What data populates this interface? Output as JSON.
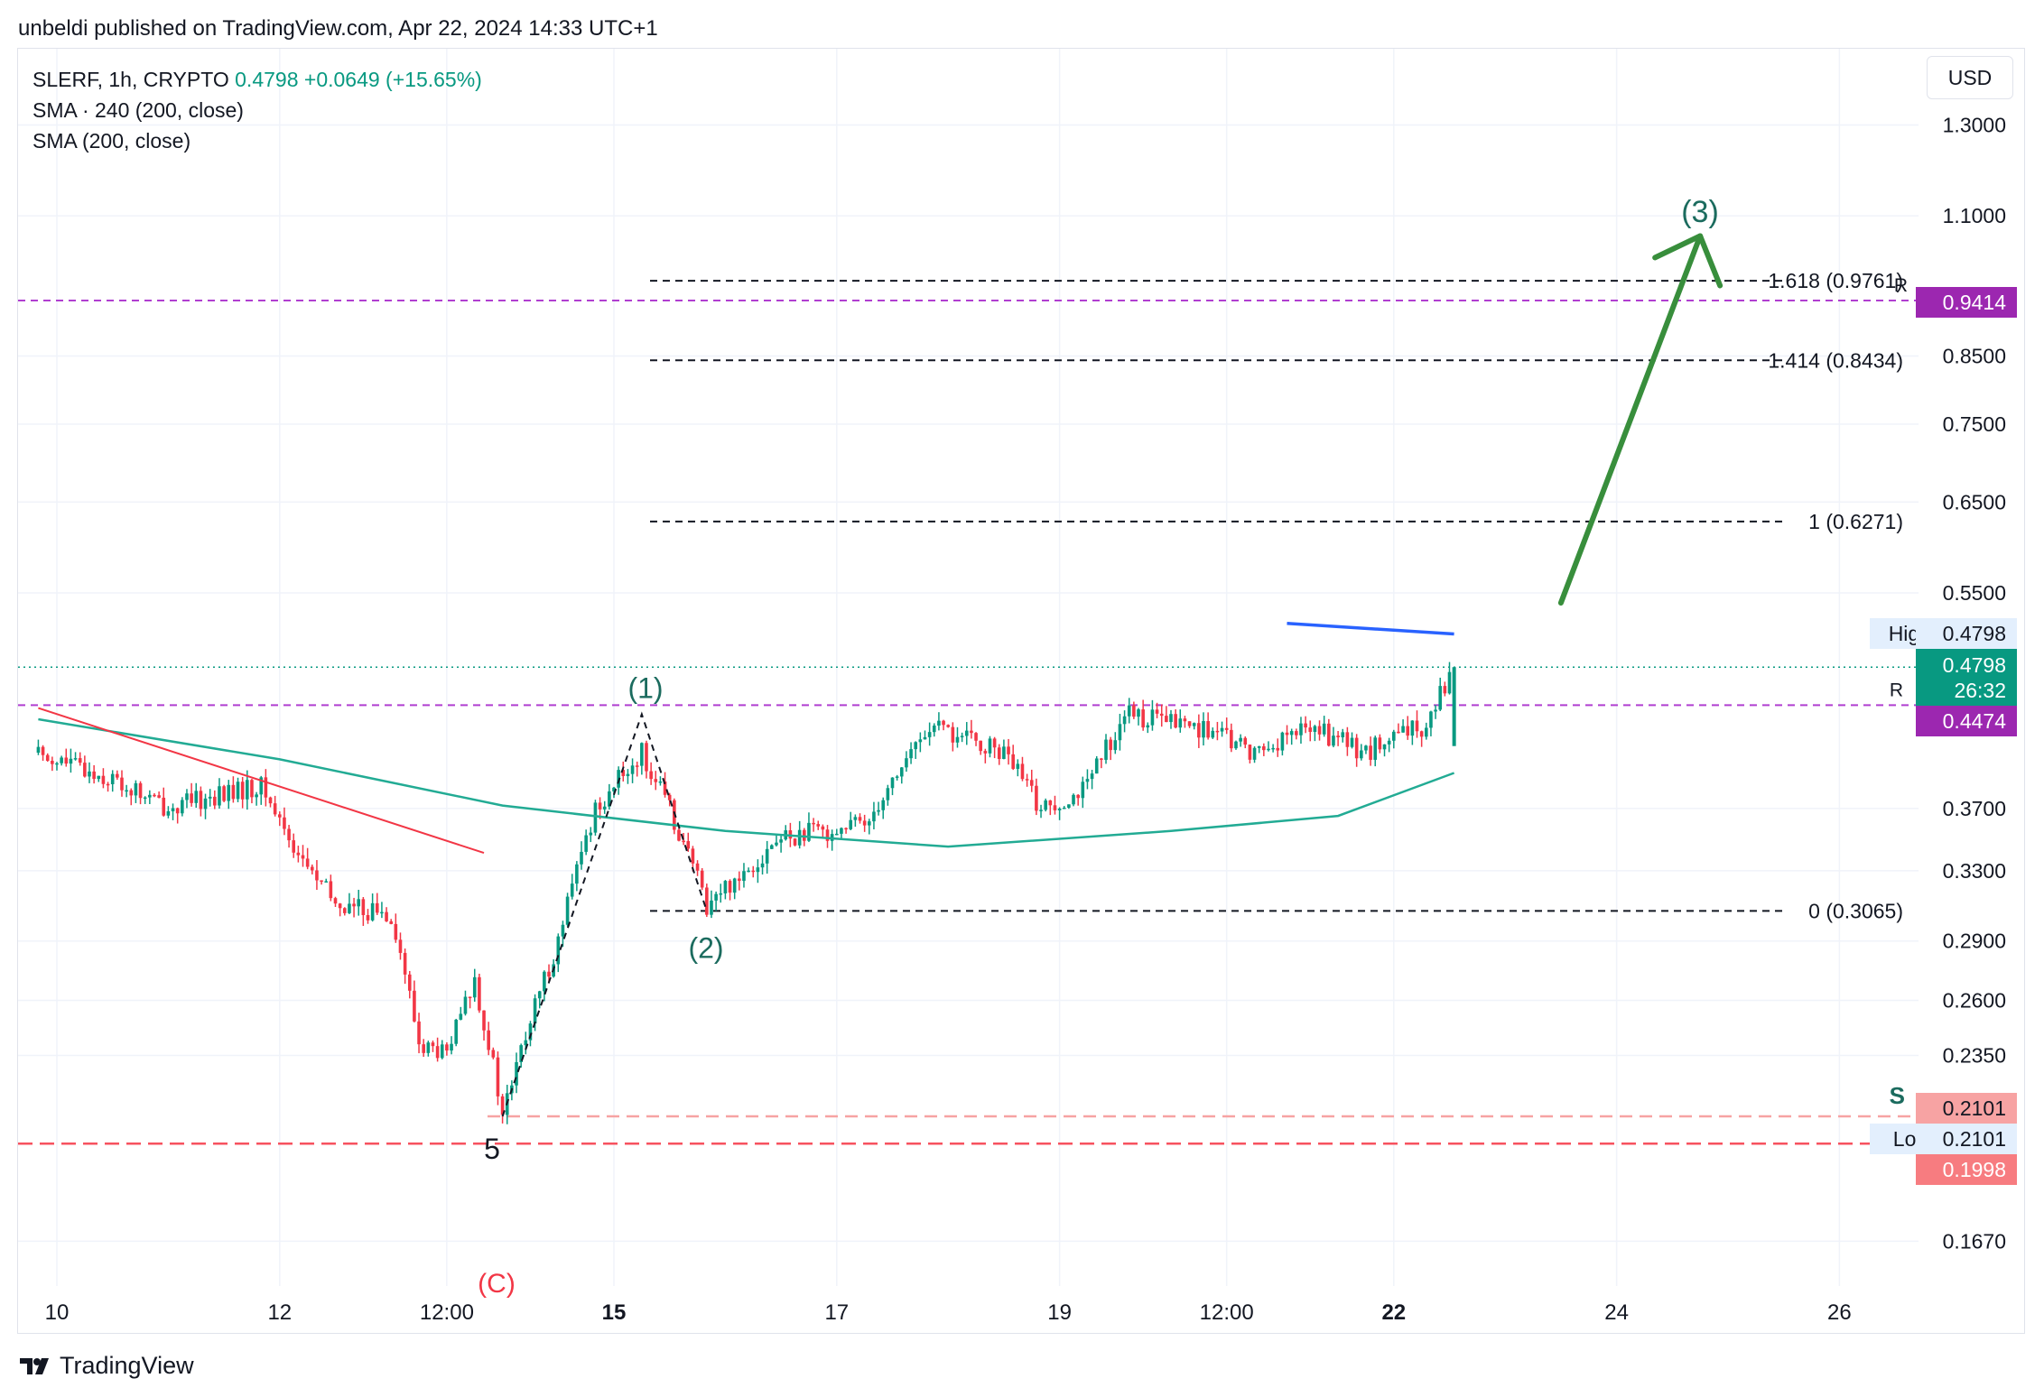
{
  "header": {
    "published_by": "unbeldi published on TradingView.com, Apr 22, 2024 14:33 UTC+1"
  },
  "legend": {
    "symbol_line": "SLERF, 1h, CRYPTO",
    "price": "0.4798",
    "change": "+0.0649 (+15.65%)",
    "sma_240": "SMA · 240 (200, close)",
    "sma_200": "SMA (200, close)"
  },
  "currency_button": "USD",
  "price_axis": {
    "ticks": [
      "1.3000",
      "1.1000",
      "0.8500",
      "0.7500",
      "0.6500",
      "0.5500",
      "0.3700",
      "0.3300",
      "0.2900",
      "0.2600",
      "0.2350",
      "0.1670"
    ]
  },
  "time_axis": {
    "ticks": [
      {
        "label": "10",
        "bold": false
      },
      {
        "label": "12",
        "bold": false
      },
      {
        "label": "12:00",
        "bold": false
      },
      {
        "label": "15",
        "bold": true
      },
      {
        "label": "17",
        "bold": false
      },
      {
        "label": "19",
        "bold": false
      },
      {
        "label": "12:00",
        "bold": false
      },
      {
        "label": "22",
        "bold": true
      },
      {
        "label": "24",
        "bold": false
      },
      {
        "label": "26",
        "bold": false
      }
    ]
  },
  "price_labels": {
    "high_tag": "High",
    "high_value": "0.4798",
    "last_price": "0.4798",
    "countdown": "26:32",
    "r_upper": "0.9414",
    "r_lower": "0.4474",
    "s_value": "0.2101",
    "low_tag": "Low",
    "low_value": "0.2101",
    "red_value": "0.1998"
  },
  "fib_levels": [
    {
      "ratio": "1.618",
      "label": "1.618 (0.9761)",
      "price": 0.9761
    },
    {
      "ratio": "1.414",
      "label": "1.414 (0.8434)",
      "price": 0.8434
    },
    {
      "ratio": "1",
      "label": "1 (0.6271)",
      "price": 0.6271
    },
    {
      "ratio": "0",
      "label": "0 (0.3065)",
      "price": 0.3065
    }
  ],
  "annotations": {
    "wave_1": "(1)",
    "wave_2": "(2)",
    "wave_3": "(3)",
    "wave_5": "5",
    "wave_c_partial": "(C)",
    "r_marker": "R",
    "r_marker_top": "R",
    "s_marker": "S"
  },
  "colors": {
    "up": "#089981",
    "down": "#f23645",
    "sma_teal": "#22ab94",
    "sma_blue": "#2962ff",
    "resistance": "#b03fd0",
    "support": "#f7525f",
    "arrow": "#388e3c",
    "wave_text": "#1b6b5e"
  },
  "chart_data": {
    "type": "candlestick",
    "title": "SLERF, 1h, CRYPTO",
    "ylabel": "USD",
    "y_scale": "log",
    "ylim": [
      0.15,
      1.45
    ],
    "x_range": [
      "Apr 9",
      "Apr 26"
    ],
    "last_close": 0.4798,
    "period_high": 0.4798,
    "period_low": 0.2101,
    "horizontal_levels": {
      "resistance": [
        0.9414,
        0.4474
      ],
      "support": [
        0.2101,
        0.1998
      ]
    },
    "series": [
      {
        "name": "SLERF price (approx. path)",
        "points": [
          [
            "Apr 9 20:00",
            0.41
          ],
          [
            "Apr 10 12:00",
            0.39
          ],
          [
            "Apr 11 00:00",
            0.37
          ],
          [
            "Apr 11 12:00",
            0.38
          ],
          [
            "Apr 11 20:00",
            0.385
          ],
          [
            "Apr 12 04:00",
            0.34
          ],
          [
            "Apr 12 12:00",
            0.31
          ],
          [
            "Apr 13 00:00",
            0.305
          ],
          [
            "Apr 13 06:00",
            0.24
          ],
          [
            "Apr 13 12:00",
            0.235
          ],
          [
            "Apr 13 18:00",
            0.27
          ],
          [
            "Apr 14 00:00",
            0.21
          ],
          [
            "Apr 14 12:00",
            0.29
          ],
          [
            "Apr 14 20:00",
            0.37
          ],
          [
            "Apr 15 06:00",
            0.41
          ],
          [
            "Apr 15 14:00",
            0.355
          ],
          [
            "Apr 15 20:00",
            0.31
          ],
          [
            "Apr 16 12:00",
            0.35
          ],
          [
            "Apr 17 06:00",
            0.36
          ],
          [
            "Apr 17 20:00",
            0.43
          ],
          [
            "Apr 18 12:00",
            0.41
          ],
          [
            "Apr 18 20:00",
            0.37
          ],
          [
            "Apr 19 06:00",
            0.385
          ],
          [
            "Apr 19 14:00",
            0.44
          ],
          [
            "Apr 20 06:00",
            0.43
          ],
          [
            "Apr 20 18:00",
            0.41
          ],
          [
            "Apr 21 06:00",
            0.43
          ],
          [
            "Apr 21 18:00",
            0.41
          ],
          [
            "Apr 22 06:00",
            0.43
          ],
          [
            "Apr 22 13:00",
            0.4798
          ]
        ]
      },
      {
        "name": "SMA · 240 (200, close)",
        "points": [
          [
            "Apr 21 01:00",
            0.52
          ],
          [
            "Apr 22 13:00",
            0.51
          ]
        ]
      },
      {
        "name": "SMA (200, close)",
        "points": [
          [
            "Apr 9 20:00",
            0.436
          ],
          [
            "Apr 12 00:00",
            0.405
          ],
          [
            "Apr 14 00:00",
            0.372
          ],
          [
            "Apr 16 00:00",
            0.355
          ],
          [
            "Apr 18 00:00",
            0.345
          ],
          [
            "Apr 20 00:00",
            0.355
          ],
          [
            "Apr 21 12:00",
            0.365
          ],
          [
            "Apr 22 13:00",
            0.395
          ]
        ]
      },
      {
        "name": "Downtrend line",
        "points": [
          [
            "Apr 9 20:00",
            0.445
          ],
          [
            "Apr 13 20:00",
            0.341
          ]
        ]
      }
    ],
    "fibonacci_extension": {
      "anchors": [
        "Apr 14 00:00 @ 0.2101",
        "Apr 15 06:00 @ 0.44",
        "Apr 15 20:00 @ 0.3065"
      ],
      "levels": [
        [
          0,
          0.3065
        ],
        [
          1,
          0.6271
        ],
        [
          1.414,
          0.8434
        ],
        [
          1.618,
          0.9761
        ]
      ]
    },
    "forecast_arrow": {
      "from": [
        "Apr 23 12:00",
        0.54
      ],
      "to": [
        "Apr 24 18:00",
        1.06
      ],
      "label": "(3)"
    }
  }
}
